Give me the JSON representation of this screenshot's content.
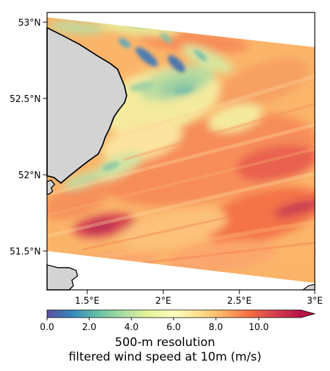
{
  "map": {
    "lat_ticks": [
      "53°N",
      "52.5°N",
      "52°N",
      "51.5°N"
    ],
    "lon_ticks": [
      "1.5°E",
      "2°E",
      "2.5°E",
      "3°E"
    ],
    "land_color": "#d3d3d3",
    "coastline_color": "#000000",
    "no_data_color": "#ffffff"
  },
  "colorbar": {
    "ticks": [
      "0.0",
      "2.0",
      "4.0",
      "6.0",
      "8.0",
      "10.0"
    ],
    "range": [
      0,
      12
    ],
    "extend": "max",
    "colormap": "Spectral_r",
    "colors": [
      "#5e4fa2",
      "#3288bd",
      "#66c2a5",
      "#abdda4",
      "#e6f598",
      "#ffffbf",
      "#fee08b",
      "#fdae61",
      "#f46d43",
      "#d53e4f",
      "#9e0142"
    ]
  },
  "caption": {
    "line1": "500-m resolution",
    "line2": "filtered wind speed at 10m (m/s)"
  }
}
